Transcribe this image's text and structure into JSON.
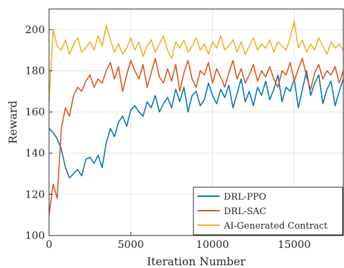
{
  "chart_data": {
    "type": "line",
    "xlabel": "Iteration Number",
    "ylabel": "Reward",
    "xlim": [
      0,
      18000
    ],
    "ylim": [
      100,
      210
    ],
    "xticks": [
      0,
      5000,
      10000,
      15000
    ],
    "yticks": [
      100,
      120,
      140,
      160,
      180,
      200
    ],
    "grid": true,
    "legend_position": "bottom-right",
    "series": [
      {
        "name": "DRL-PPO",
        "color": "#0072BD",
        "x": [
          0,
          250,
          500,
          750,
          1000,
          1250,
          1500,
          1750,
          2000,
          2250,
          2500,
          2750,
          3000,
          3250,
          3500,
          3750,
          4000,
          4250,
          4500,
          4750,
          5000,
          5250,
          5500,
          5750,
          6000,
          6250,
          6500,
          6750,
          7000,
          7250,
          7500,
          7750,
          8000,
          8250,
          8500,
          8750,
          9000,
          9250,
          9500,
          9750,
          10000,
          10250,
          10500,
          10750,
          11000,
          11250,
          11500,
          11750,
          12000,
          12250,
          12500,
          12750,
          13000,
          13250,
          13500,
          13750,
          14000,
          14250,
          14500,
          14750,
          15000,
          15250,
          15500,
          15750,
          16000,
          16250,
          16500,
          16750,
          17000,
          17250,
          17500,
          17750,
          18000
        ],
        "values": [
          152,
          150,
          147,
          142,
          133,
          128,
          130,
          132,
          129,
          137,
          138,
          135,
          139,
          133,
          145,
          152,
          148,
          155,
          158,
          153,
          161,
          163,
          160,
          158,
          165,
          162,
          168,
          160,
          164,
          167,
          162,
          171,
          165,
          172,
          160,
          168,
          170,
          163,
          166,
          174,
          168,
          164,
          171,
          167,
          173,
          162,
          169,
          176,
          165,
          170,
          163,
          172,
          168,
          175,
          166,
          171,
          178,
          165,
          172,
          170,
          176,
          162,
          171,
          180,
          168,
          174,
          178,
          164,
          171,
          175,
          163,
          170,
          176
        ]
      },
      {
        "name": "DRL-SAC",
        "color": "#D95319",
        "x": [
          0,
          250,
          500,
          750,
          1000,
          1250,
          1500,
          1750,
          2000,
          2250,
          2500,
          2750,
          3000,
          3250,
          3500,
          3750,
          4000,
          4250,
          4500,
          4750,
          5000,
          5250,
          5500,
          5750,
          6000,
          6250,
          6500,
          6750,
          7000,
          7250,
          7500,
          7750,
          8000,
          8250,
          8500,
          8750,
          9000,
          9250,
          9500,
          9750,
          10000,
          10250,
          10500,
          10750,
          11000,
          11250,
          11500,
          11750,
          12000,
          12250,
          12500,
          12750,
          13000,
          13250,
          13500,
          13750,
          14000,
          14250,
          14500,
          14750,
          15000,
          15250,
          15500,
          15750,
          16000,
          16250,
          16500,
          16750,
          17000,
          17250,
          17500,
          17750,
          18000
        ],
        "values": [
          110,
          125,
          118,
          152,
          162,
          158,
          168,
          172,
          170,
          175,
          178,
          172,
          176,
          174,
          180,
          184,
          176,
          182,
          170,
          178,
          185,
          180,
          176,
          183,
          172,
          179,
          186,
          177,
          174,
          181,
          175,
          183,
          170,
          179,
          185,
          176,
          172,
          180,
          178,
          184,
          174,
          181,
          177,
          172,
          179,
          185,
          176,
          181,
          174,
          178,
          183,
          175,
          180,
          177,
          182,
          176,
          172,
          180,
          178,
          184,
          175,
          181,
          186,
          177,
          171,
          179,
          183,
          176,
          180,
          178,
          182,
          174,
          180
        ]
      },
      {
        "name": "AI-Generated Contract",
        "color": "#EDB120",
        "x": [
          0,
          250,
          500,
          750,
          1000,
          1250,
          1500,
          1750,
          2000,
          2250,
          2500,
          2750,
          3000,
          3250,
          3500,
          3750,
          4000,
          4250,
          4500,
          4750,
          5000,
          5250,
          5500,
          5750,
          6000,
          6250,
          6500,
          6750,
          7000,
          7250,
          7500,
          7750,
          8000,
          8250,
          8500,
          8750,
          9000,
          9250,
          9500,
          9750,
          10000,
          10250,
          10500,
          10750,
          11000,
          11250,
          11500,
          11750,
          12000,
          12250,
          12500,
          12750,
          13000,
          13250,
          13500,
          13750,
          14000,
          14250,
          14500,
          14750,
          15000,
          15250,
          15500,
          15750,
          16000,
          16250,
          16500,
          16750,
          17000,
          17250,
          17500,
          17750,
          18000
        ],
        "values": [
          165,
          200,
          192,
          190,
          195,
          188,
          193,
          196,
          189,
          191,
          194,
          190,
          197,
          192,
          202,
          195,
          189,
          193,
          188,
          191,
          196,
          190,
          194,
          187,
          192,
          195,
          189,
          193,
          197,
          190,
          186,
          194,
          191,
          195,
          189,
          192,
          196,
          190,
          193,
          188,
          194,
          191,
          197,
          190,
          192,
          195,
          189,
          194,
          188,
          192,
          196,
          190,
          193,
          191,
          195,
          189,
          194,
          192,
          190,
          196,
          204,
          191,
          195,
          189,
          193,
          190,
          196,
          192,
          188,
          194,
          191,
          193,
          190
        ]
      }
    ]
  }
}
